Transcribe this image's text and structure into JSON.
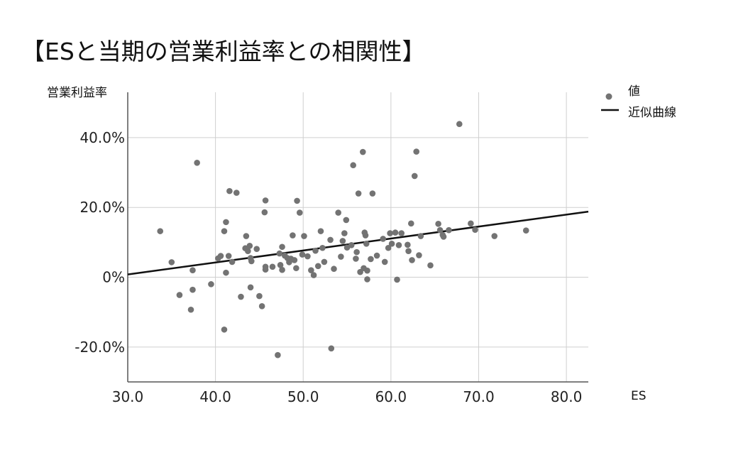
{
  "page": {
    "title": "【ESと当期の営業利益率との相関性】"
  },
  "chart_data": {
    "type": "scatter",
    "xlabel": "ES",
    "ylabel": "営業利益率",
    "xlim": [
      30,
      82.5
    ],
    "ylim": [
      -30,
      53
    ],
    "x_ticks": [
      {
        "value": 30,
        "label": "30.0"
      },
      {
        "value": 40,
        "label": "40.0"
      },
      {
        "value": 50,
        "label": "50.0"
      },
      {
        "value": 60,
        "label": "60.0"
      },
      {
        "value": 70,
        "label": "70.0"
      },
      {
        "value": 80,
        "label": "80.0"
      }
    ],
    "y_ticks": [
      {
        "value": -20,
        "label": "-20.0%"
      },
      {
        "value": 0,
        "label": "0%"
      },
      {
        "value": 20,
        "label": "20.0%"
      },
      {
        "value": 40,
        "label": "40.0%"
      }
    ],
    "grid": true,
    "legend_position": "top-right",
    "series": [
      {
        "name": "値",
        "kind": "scatter",
        "color": "#737373",
        "points": [
          [
            33.7,
            13.2
          ],
          [
            35.0,
            4.3
          ],
          [
            35.9,
            -5.1
          ],
          [
            37.2,
            -9.3
          ],
          [
            37.4,
            2.0
          ],
          [
            37.4,
            -3.6
          ],
          [
            37.9,
            32.8
          ],
          [
            39.5,
            -2.0
          ],
          [
            40.3,
            5.4
          ],
          [
            40.6,
            6.1
          ],
          [
            41.0,
            -15.0
          ],
          [
            41.0,
            13.2
          ],
          [
            41.2,
            1.3
          ],
          [
            41.2,
            15.8
          ],
          [
            41.5,
            6.1
          ],
          [
            41.6,
            24.7
          ],
          [
            41.9,
            4.4
          ],
          [
            42.4,
            24.2
          ],
          [
            42.9,
            -5.6
          ],
          [
            43.5,
            11.8
          ],
          [
            43.4,
            8.3
          ],
          [
            43.7,
            7.5
          ],
          [
            43.9,
            9.0
          ],
          [
            44.0,
            5.5
          ],
          [
            44.1,
            4.6
          ],
          [
            44.0,
            -2.9
          ],
          [
            44.7,
            8.1
          ],
          [
            45.0,
            -5.4
          ],
          [
            45.3,
            -8.3
          ],
          [
            45.7,
            3.0
          ],
          [
            45.7,
            2.2
          ],
          [
            45.6,
            18.6
          ],
          [
            45.7,
            22.0
          ],
          [
            46.5,
            3.0
          ],
          [
            47.1,
            -22.3
          ],
          [
            47.3,
            6.8
          ],
          [
            47.4,
            3.5
          ],
          [
            47.6,
            2.1
          ],
          [
            47.6,
            8.7
          ],
          [
            47.9,
            6.2
          ],
          [
            48.2,
            5.5
          ],
          [
            48.4,
            4.3
          ],
          [
            48.6,
            5.3
          ],
          [
            48.8,
            12.0
          ],
          [
            49.0,
            4.9
          ],
          [
            49.2,
            2.6
          ],
          [
            49.3,
            21.9
          ],
          [
            49.6,
            18.5
          ],
          [
            49.9,
            6.5
          ],
          [
            50.1,
            11.8
          ],
          [
            50.5,
            6.0
          ],
          [
            50.9,
            2.0
          ],
          [
            51.2,
            0.6
          ],
          [
            51.4,
            7.6
          ],
          [
            51.7,
            3.2
          ],
          [
            52.0,
            13.2
          ],
          [
            52.2,
            8.4
          ],
          [
            52.4,
            4.4
          ],
          [
            53.1,
            10.7
          ],
          [
            53.2,
            -20.4
          ],
          [
            53.5,
            2.4
          ],
          [
            54.0,
            18.5
          ],
          [
            54.3,
            5.9
          ],
          [
            54.5,
            10.4
          ],
          [
            54.7,
            12.6
          ],
          [
            54.9,
            16.4
          ],
          [
            55.0,
            8.5
          ],
          [
            55.5,
            9.2
          ],
          [
            55.7,
            32.1
          ],
          [
            56.0,
            5.3
          ],
          [
            56.1,
            7.2
          ],
          [
            56.3,
            24.0
          ],
          [
            56.5,
            1.5
          ],
          [
            56.8,
            35.9
          ],
          [
            56.9,
            2.6
          ],
          [
            57.1,
            12.0
          ],
          [
            57.0,
            12.8
          ],
          [
            57.2,
            9.6
          ],
          [
            57.3,
            1.9
          ],
          [
            57.3,
            -0.6
          ],
          [
            57.7,
            5.2
          ],
          [
            57.9,
            24.0
          ],
          [
            58.4,
            6.2
          ],
          [
            59.1,
            11.0
          ],
          [
            59.3,
            4.4
          ],
          [
            59.7,
            8.4
          ],
          [
            59.9,
            12.6
          ],
          [
            60.1,
            9.6
          ],
          [
            60.5,
            12.8
          ],
          [
            60.7,
            -0.7
          ],
          [
            60.9,
            9.2
          ],
          [
            61.2,
            12.6
          ],
          [
            61.9,
            9.3
          ],
          [
            62.0,
            7.5
          ],
          [
            62.3,
            15.4
          ],
          [
            62.4,
            4.9
          ],
          [
            62.7,
            29.0
          ],
          [
            62.9,
            36.0
          ],
          [
            63.2,
            6.3
          ],
          [
            63.4,
            11.8
          ],
          [
            64.5,
            3.4
          ],
          [
            65.4,
            15.3
          ],
          [
            65.6,
            13.5
          ],
          [
            65.9,
            12.1
          ],
          [
            66.0,
            11.6
          ],
          [
            66.6,
            13.5
          ],
          [
            67.8,
            43.9
          ],
          [
            69.1,
            15.4
          ],
          [
            69.6,
            13.6
          ],
          [
            71.8,
            11.8
          ],
          [
            75.4,
            13.4
          ]
        ]
      },
      {
        "name": "近似曲線",
        "kind": "line",
        "color": "#111111",
        "x": [
          30.0,
          82.5
        ],
        "y": [
          0.8,
          18.8
        ]
      }
    ]
  }
}
